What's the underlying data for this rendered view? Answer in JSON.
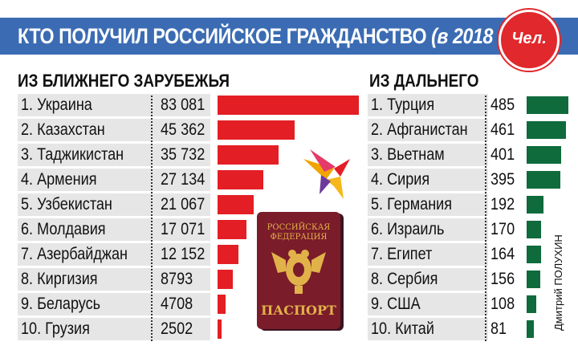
{
  "header": {
    "title_main": "КТО ПОЛУЧИЛ РОССИЙСКОЕ ГРАЖДАНСТВО",
    "title_year": "(в 2018 г.)",
    "badge": "Чел."
  },
  "passport": {
    "line1": "РОССИЙСКАЯ",
    "line2": "ФЕДЕРАЦИЯ",
    "label": "ПАСПОРТ"
  },
  "credit": "Дмитрий ПОЛУХИН",
  "colors": {
    "header": "#3b6cb3",
    "red_bar": "#e31e24",
    "green_bar": "#0f6b3c",
    "badge": "#e1282c"
  },
  "chart_data": [
    {
      "type": "bar",
      "title": "ИЗ БЛИЖНЕГО ЗАРУБЕЖЬЯ",
      "categories": [
        "1. Украина",
        "2. Казахстан",
        "3. Таджикистан",
        "4. Армения",
        "5. Узбекистан",
        "6. Молдавия",
        "7. Азербайджан",
        "8. Киргизия",
        "9. Беларусь",
        "10. Грузия"
      ],
      "value_labels": [
        "83 081",
        "45 362",
        "35 732",
        "27 134",
        "21 067",
        "17 071",
        "12 152",
        "8793",
        "4708",
        "2502"
      ],
      "values": [
        83081,
        45362,
        35732,
        27134,
        21067,
        17071,
        12152,
        8793,
        4708,
        2502
      ]
    },
    {
      "type": "bar",
      "title": "ИЗ ДАЛЬНЕГО",
      "categories": [
        "1. Турция",
        "2. Афганистан",
        "3. Вьетнам",
        "4. Сирия",
        "5. Германия",
        "6. Израиль",
        "7. Египет",
        "8. Сербия",
        "9. США",
        "10. Китай"
      ],
      "value_labels": [
        "485",
        "461",
        "401",
        "395",
        "192",
        "170",
        "164",
        "156",
        "108",
        "81"
      ],
      "values": [
        485,
        461,
        401,
        395,
        192,
        170,
        164,
        156,
        108,
        81
      ]
    }
  ]
}
